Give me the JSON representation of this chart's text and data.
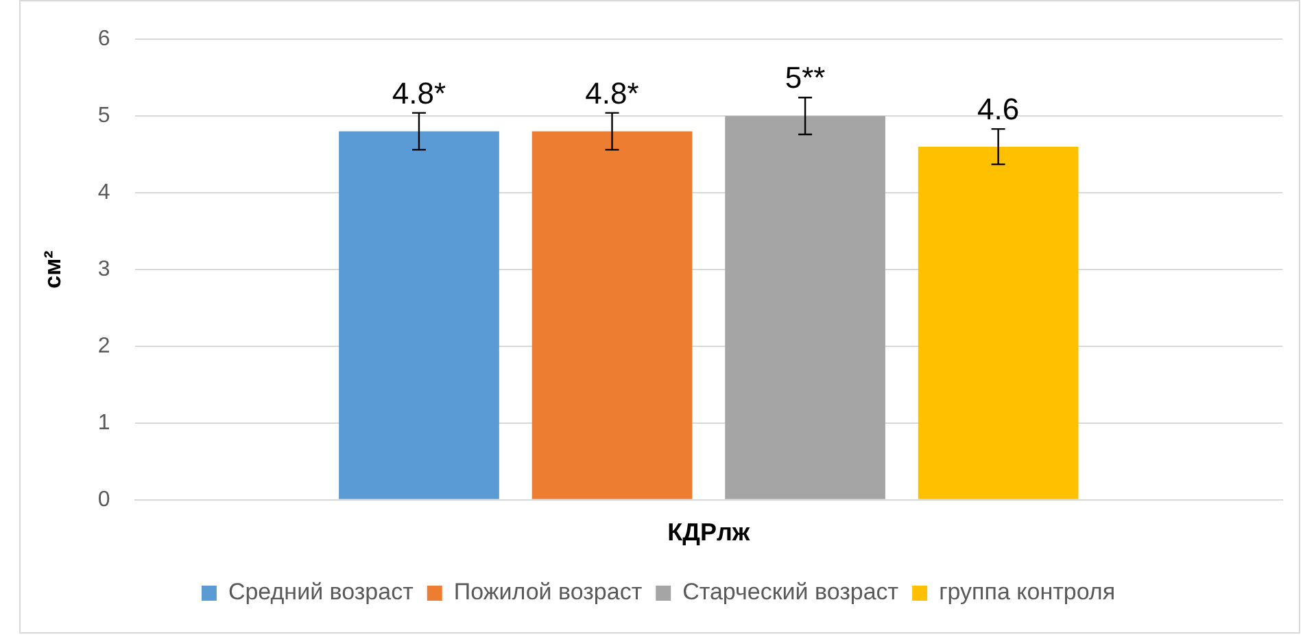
{
  "chart_data": {
    "type": "bar",
    "ylabel": "см²",
    "categories": [
      "КДРлж"
    ],
    "series": [
      {
        "name": "Средний возраст",
        "color": "#5b9bd5",
        "values": [
          4.8
        ],
        "errors": [
          0.24
        ],
        "value_labels": [
          "4.8*"
        ]
      },
      {
        "name": "Пожилой возраст",
        "color": "#ed7d31",
        "values": [
          4.8
        ],
        "errors": [
          0.24
        ],
        "value_labels": [
          "4.8*"
        ]
      },
      {
        "name": "Старческий возраст",
        "color": "#a5a5a5",
        "values": [
          5
        ],
        "errors": [
          0.24
        ],
        "value_labels": [
          "5**"
        ]
      },
      {
        "name": "группа контроля",
        "color": "#ffc000",
        "values": [
          4.6
        ],
        "errors": [
          0.23
        ],
        "value_labels": [
          "4.6"
        ]
      }
    ],
    "ylim": [
      0,
      6
    ],
    "yticks": [
      0,
      1,
      2,
      3,
      4,
      5,
      6
    ],
    "grid": "y",
    "legend": "bottom"
  }
}
